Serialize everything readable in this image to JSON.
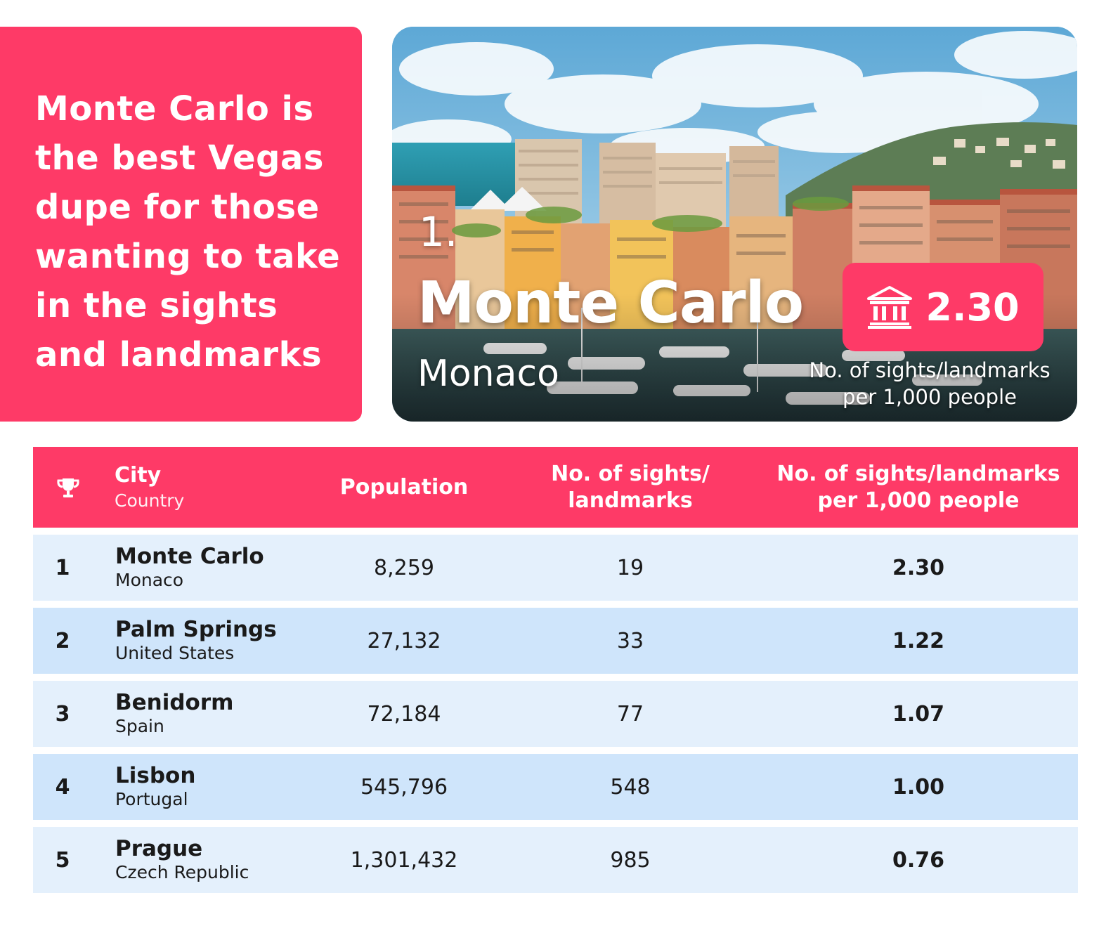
{
  "headline": {
    "lines": [
      "Monte Carlo is",
      "the best Vegas",
      "dupe for those",
      "wanting to take",
      "in the sights",
      "and landmarks"
    ]
  },
  "feature": {
    "rank": "1.",
    "city": "Monte Carlo",
    "country": "Monaco",
    "score": "2.30",
    "score_icon": "landmark-building-icon",
    "score_caption_line1": "No. of sights/landmarks",
    "score_caption_line2": "per 1,000 people"
  },
  "table": {
    "header": {
      "rank_icon": "trophy-icon",
      "city": "City",
      "country": "Country",
      "population": "Population",
      "sights_line1": "No. of sights/",
      "sights_line2": "landmarks",
      "per_line1": "No. of sights/landmarks",
      "per_line2": "per 1,000 people"
    },
    "rows": [
      {
        "rank": "1",
        "city": "Monte Carlo",
        "country": "Monaco",
        "population": "8,259",
        "sights": "19",
        "per_1000": "2.30"
      },
      {
        "rank": "2",
        "city": "Palm Springs",
        "country": "United States",
        "population": "27,132",
        "sights": "33",
        "per_1000": "1.22"
      },
      {
        "rank": "3",
        "city": "Benidorm",
        "country": "Spain",
        "population": "72,184",
        "sights": "77",
        "per_1000": "1.07"
      },
      {
        "rank": "4",
        "city": "Lisbon",
        "country": "Portugal",
        "population": "545,796",
        "sights": "548",
        "per_1000": "1.00"
      },
      {
        "rank": "5",
        "city": "Prague",
        "country": "Czech Republic",
        "population": "1,301,432",
        "sights": "985",
        "per_1000": "0.76"
      }
    ]
  },
  "colors": {
    "accent": "#fe3a67",
    "row_light": "#e4f0fc",
    "row_dark": "#cfe5fb",
    "text_dark": "#1a1a1a"
  }
}
